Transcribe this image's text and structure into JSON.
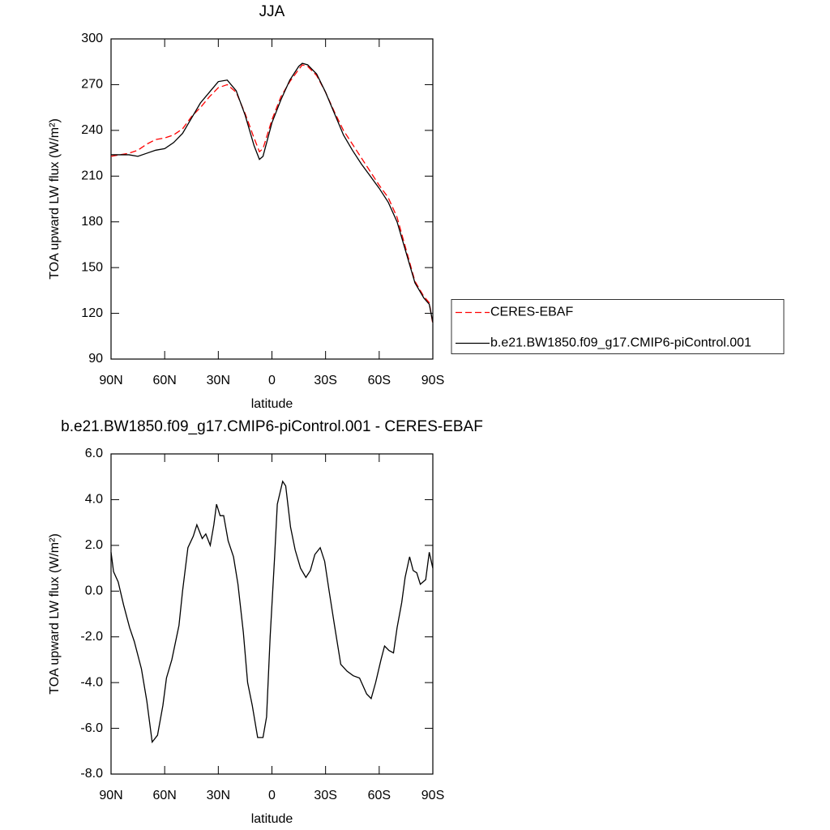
{
  "chart_data": [
    {
      "type": "line",
      "title": "JJA",
      "xlabel": "latitude",
      "ylabel": "TOA upward LW flux (W/m²)",
      "x": [
        90,
        80,
        75,
        70,
        65,
        60,
        55,
        50,
        45,
        40,
        35,
        30,
        25,
        20,
        15,
        10,
        7,
        5,
        0,
        -5,
        -10,
        -15,
        -17,
        -20,
        -25,
        -30,
        -35,
        -40,
        -45,
        -50,
        -55,
        -60,
        -65,
        -70,
        -75,
        -80,
        -85,
        -88,
        -90
      ],
      "series": [
        {
          "name": "CERES-EBAF",
          "color": "#ff0000",
          "dashed": true,
          "values": [
            223,
            225,
            227,
            231,
            234,
            235,
            237,
            241,
            249,
            255,
            262,
            268,
            270,
            265,
            251,
            235,
            226,
            228,
            247,
            262,
            272,
            280,
            283,
            282,
            276,
            265,
            252,
            240,
            231,
            222,
            213,
            204,
            196,
            183,
            162,
            141,
            131,
            127,
            113
          ]
        },
        {
          "name": "b.e21.BW1850.f09_g17.CMIP6-piControl.001",
          "color": "#000000",
          "dashed": false,
          "values": [
            224,
            224,
            223,
            225,
            227,
            228,
            232,
            238,
            248,
            258,
            265,
            272,
            273,
            266,
            250,
            230,
            221,
            223,
            245,
            260,
            273,
            282,
            284,
            283,
            277,
            265,
            251,
            237,
            227,
            218,
            210,
            202,
            193,
            180,
            160,
            140,
            130,
            126,
            114
          ]
        }
      ],
      "xlim": [
        90,
        -90
      ],
      "xticks": [
        {
          "value": 90,
          "label": "90N"
        },
        {
          "value": 60,
          "label": "60N"
        },
        {
          "value": 30,
          "label": "30N"
        },
        0,
        {
          "value": -30,
          "label": "30S"
        },
        {
          "value": -60,
          "label": "60S"
        },
        {
          "value": -90,
          "label": "90S"
        }
      ],
      "ylim": [
        90,
        300
      ],
      "yticks": [
        90,
        120,
        150,
        180,
        210,
        240,
        270,
        300
      ],
      "legend": "right"
    },
    {
      "type": "line",
      "title": "b.e21.BW1850.f09_g17.CMIP6-piControl.001 - CERES-EBAF",
      "xlabel": "latitude",
      "ylabel": "TOA upward LW flux (W/m²)",
      "x": [
        90,
        88.6,
        86,
        83,
        79.6,
        77,
        73,
        70,
        67,
        64,
        61,
        59,
        56,
        52,
        50,
        47,
        44,
        42,
        39,
        37,
        34.5,
        32.5,
        31,
        29,
        27,
        24.5,
        21.5,
        19,
        16,
        13.6,
        11,
        8,
        5,
        3,
        1,
        -1.5,
        -3,
        -6,
        -7.7,
        -10.4,
        -13,
        -16,
        -19,
        -21.5,
        -24,
        -27,
        -29.5,
        -32,
        -35,
        -38.5,
        -42,
        -45.5,
        -49,
        -53,
        -55.5,
        -58,
        -61,
        -63,
        -65.5,
        -68,
        -70,
        -72.6,
        -74.5,
        -77,
        -79,
        -81,
        -83,
        -86,
        -88,
        -90
      ],
      "values": [
        1.7,
        0.85,
        0.4,
        -0.6,
        -1.6,
        -2.2,
        -3.4,
        -4.8,
        -6.6,
        -6.3,
        -5.0,
        -3.8,
        -3.0,
        -1.5,
        0.0,
        1.9,
        2.4,
        2.9,
        2.3,
        2.5,
        2.0,
        2.9,
        3.8,
        3.3,
        3.3,
        2.2,
        1.5,
        0.3,
        -1.8,
        -4.0,
        -5.0,
        -6.4,
        -6.4,
        -5.5,
        -2.0,
        1.5,
        3.8,
        4.8,
        4.6,
        2.8,
        1.8,
        1.0,
        0.6,
        0.9,
        1.6,
        1.9,
        1.3,
        0.0,
        -1.5,
        -3.2,
        -3.5,
        -3.7,
        -3.8,
        -4.5,
        -4.7,
        -4.0,
        -3.0,
        -2.4,
        -2.6,
        -2.7,
        -1.6,
        -0.5,
        0.6,
        1.5,
        0.9,
        0.8,
        0.3,
        0.5,
        1.7,
        1.0
      ],
      "color": "#000000",
      "xlim": [
        90,
        -90
      ],
      "xticks": [
        {
          "value": 90,
          "label": "90N"
        },
        {
          "value": 60,
          "label": "60N"
        },
        {
          "value": 30,
          "label": "30N"
        },
        0,
        {
          "value": -30,
          "label": "30S"
        },
        {
          "value": -60,
          "label": "60S"
        },
        {
          "value": -90,
          "label": "90S"
        }
      ],
      "ylim": [
        -8,
        6
      ],
      "yticks": [
        {
          "value": -8,
          "label": "-8.0"
        },
        {
          "value": -6,
          "label": "-6.0"
        },
        {
          "value": -4,
          "label": "-4.0"
        },
        {
          "value": -2,
          "label": "-2.0"
        },
        {
          "value": 0,
          "label": "0.0"
        },
        {
          "value": 2,
          "label": "2.0"
        },
        {
          "value": 4,
          "label": "4.0"
        },
        {
          "value": 6,
          "label": "6.0"
        }
      ]
    }
  ]
}
